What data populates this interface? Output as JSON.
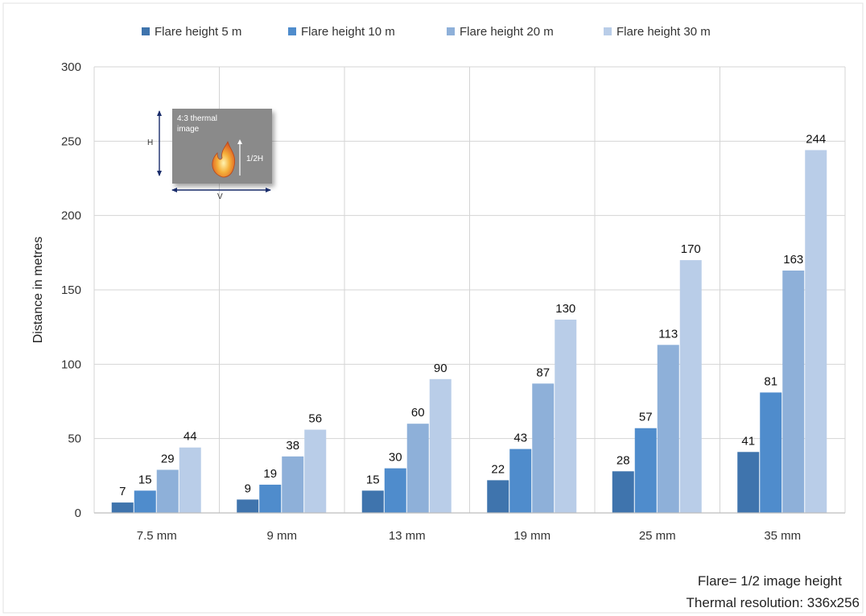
{
  "chart_data": {
    "type": "bar",
    "categories": [
      "7.5 mm",
      "9 mm",
      "13 mm",
      "19 mm",
      "25 mm",
      "35 mm"
    ],
    "series": [
      {
        "name": "Flare height 5 m",
        "color": "#3f74ad",
        "values": [
          7,
          9,
          15,
          22,
          28,
          41
        ]
      },
      {
        "name": "Flare height 10 m",
        "color": "#4f8ccc",
        "values": [
          15,
          19,
          30,
          43,
          57,
          81
        ]
      },
      {
        "name": "Flare height 20 m",
        "color": "#8eb0d9",
        "values": [
          29,
          38,
          60,
          87,
          113,
          163
        ]
      },
      {
        "name": "Flare height 30 m",
        "color": "#b9cde8",
        "values": [
          44,
          56,
          90,
          130,
          170,
          244
        ]
      }
    ],
    "ylabel": "Distance in metres",
    "xlabel": "",
    "ylim": [
      0,
      300
    ],
    "yticks": [
      0,
      50,
      100,
      150,
      200,
      250,
      300
    ],
    "grid": true,
    "legend_position": "top",
    "notes": [
      "Flare= 1/2 image height",
      "Thermal resolution: 336x256"
    ]
  },
  "inset": {
    "caption_line1": "4:3 thermal",
    "caption_line2": "image",
    "height_label": "H",
    "half_label": "1/2H",
    "width_label": "V",
    "icon": "flame-icon"
  }
}
